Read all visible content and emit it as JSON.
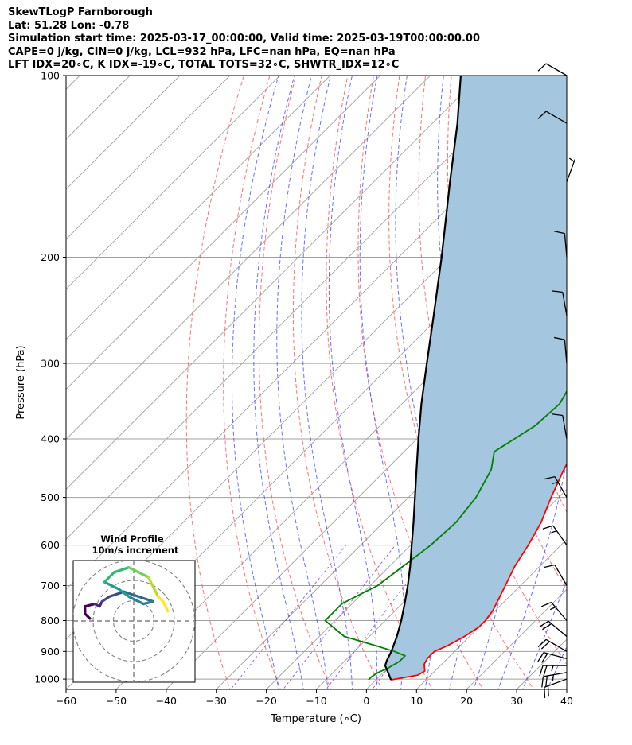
{
  "header": {
    "line1": "SkewTLogP Farnborough",
    "line2": "Lat: 51.28   Lon: -0.78",
    "line3": "Simulation start time: 2025-03-17_00:00:00, Valid time: 2025-03-19T00:00:00.00",
    "line4": "CAPE=0 j/kg, CIN=0 j/kg, LCL=932 hPa, LFC=nan hPa, EQ=nan hPa",
    "line5": "LFT IDX=20∘C, K IDX=-19∘C, TOTAL TOTS=32∘C, SHWTR_IDX=12∘C"
  },
  "inset": {
    "title": "Wind Profile",
    "subtitle": "10m/s increment"
  },
  "colors": {
    "temperature": "#ff0000",
    "dewpoint": "#008000",
    "parcel": "#000000",
    "cape_fill": "#a4c6de",
    "dry_adiabats": "#ff5a5a",
    "moist_adiabats": "#3c50ff",
    "mixing_ratio": "#8a3cd2",
    "isotherms": "#a0a0a0"
  },
  "chart_data": {
    "type": "line",
    "subtype": "skew-t-log-p",
    "xlabel": "Temperature (∘C)",
    "ylabel": "Pressure (hPa)",
    "xlim": [
      -60,
      40
    ],
    "ylim": [
      1040,
      100
    ],
    "x_ticks": [
      -60,
      -50,
      -40,
      -30,
      -20,
      -10,
      0,
      10,
      20,
      30,
      40
    ],
    "x_tick_labels": [
      "−60",
      "−50",
      "−40",
      "−30",
      "−20",
      "−10",
      "0",
      "10",
      "20",
      "30",
      "40"
    ],
    "y_ticks": [
      1000,
      900,
      800,
      700,
      600,
      500,
      400,
      300,
      200,
      100
    ],
    "y_tick_labels": [
      "1000",
      "900",
      "800",
      "700",
      "600",
      "500",
      "400",
      "300",
      "200",
      "100"
    ],
    "grid": true,
    "series": [
      {
        "key": "temperature",
        "points": [
          [
            1003,
            3
          ],
          [
            995,
            5
          ],
          [
            985,
            7.4
          ],
          [
            970,
            8
          ],
          [
            945,
            6.5
          ],
          [
            925,
            6
          ],
          [
            900,
            6
          ],
          [
            880,
            7.5
          ],
          [
            850,
            9
          ],
          [
            820,
            10
          ],
          [
            800,
            10
          ],
          [
            770,
            9.5
          ],
          [
            700,
            7
          ],
          [
            650,
            5
          ],
          [
            600,
            3.5
          ],
          [
            550,
            1.5
          ],
          [
            500,
            -1.5
          ],
          [
            450,
            -4.5
          ],
          [
            400,
            -7.5
          ],
          [
            350,
            -11
          ],
          [
            300,
            -14
          ],
          [
            270,
            -15
          ],
          [
            245,
            -15
          ],
          [
            230,
            -14
          ],
          [
            215,
            -12.5
          ],
          [
            200,
            -11
          ],
          [
            180,
            -8
          ],
          [
            160,
            -5
          ],
          [
            140,
            -2.5
          ],
          [
            120,
            1.5
          ],
          [
            110,
            3.5
          ],
          [
            100,
            7.5
          ]
        ]
      },
      {
        "key": "dewpoint",
        "points": [
          [
            1003,
            -1.5
          ],
          [
            990,
            -1.5
          ],
          [
            975,
            -1
          ],
          [
            960,
            0
          ],
          [
            935,
            1
          ],
          [
            915,
            1
          ],
          [
            900,
            -2
          ],
          [
            880,
            -7
          ],
          [
            850,
            -15
          ],
          [
            800,
            -22
          ],
          [
            750,
            -22
          ],
          [
            720,
            -20
          ],
          [
            700,
            -18.5
          ],
          [
            600,
            -16
          ],
          [
            550,
            -15.5
          ],
          [
            500,
            -16.5
          ],
          [
            450,
            -19
          ],
          [
            420,
            -22
          ],
          [
            380,
            -19
          ],
          [
            350,
            -18.5
          ],
          [
            320,
            -20.5
          ],
          [
            300,
            -24
          ],
          [
            270,
            -29
          ],
          [
            250,
            -27
          ],
          [
            230,
            -26
          ],
          [
            210,
            -24.5
          ],
          [
            190,
            -21.5
          ],
          [
            175,
            -21.5
          ],
          [
            160,
            -22.5
          ],
          [
            140,
            -18
          ],
          [
            120,
            -13
          ],
          [
            100,
            -7
          ]
        ]
      },
      {
        "key": "parcel",
        "points": [
          [
            1003,
            3
          ],
          [
            980,
            1.3
          ],
          [
            950,
            -1
          ],
          [
            932,
            -1.7
          ],
          [
            900,
            -2.6
          ],
          [
            850,
            -4.5
          ],
          [
            800,
            -6.8
          ],
          [
            750,
            -9.5
          ],
          [
            700,
            -12.5
          ],
          [
            650,
            -15.9
          ],
          [
            600,
            -19.8
          ],
          [
            550,
            -24
          ],
          [
            500,
            -28.7
          ],
          [
            450,
            -33.9
          ],
          [
            400,
            -39.7
          ],
          [
            350,
            -46.1
          ],
          [
            300,
            -53.1
          ],
          [
            250,
            -61.3
          ],
          [
            200,
            -71.4
          ],
          [
            150,
            -84.8
          ],
          [
            120,
            -95
          ],
          [
            100,
            -103.9
          ]
        ]
      }
    ],
    "wind_barbs": [
      {
        "p": 1000,
        "dir": 250,
        "speed_kt": 20
      },
      {
        "p": 975,
        "dir": 260,
        "speed_kt": 25
      },
      {
        "p": 950,
        "dir": 270,
        "speed_kt": 25
      },
      {
        "p": 925,
        "dir": 285,
        "speed_kt": 20
      },
      {
        "p": 900,
        "dir": 300,
        "speed_kt": 20
      },
      {
        "p": 850,
        "dir": 310,
        "speed_kt": 20
      },
      {
        "p": 800,
        "dir": 320,
        "speed_kt": 15
      },
      {
        "p": 700,
        "dir": 330,
        "speed_kt": 10
      },
      {
        "p": 600,
        "dir": 325,
        "speed_kt": 15
      },
      {
        "p": 500,
        "dir": 330,
        "speed_kt": 15
      },
      {
        "p": 400,
        "dir": 350,
        "speed_kt": 10
      },
      {
        "p": 300,
        "dir": 355,
        "speed_kt": 10
      },
      {
        "p": 250,
        "dir": 350,
        "speed_kt": 10
      },
      {
        "p": 200,
        "dir": 355,
        "speed_kt": 10
      },
      {
        "p": 150,
        "dir": 20,
        "speed_kt": 5
      },
      {
        "p": 120,
        "dir": 300,
        "speed_kt": 10
      },
      {
        "p": 100,
        "dir": 300,
        "speed_kt": 10
      }
    ],
    "hodograph": {
      "rings": 3,
      "points": [
        [
          -9,
          0.5
        ],
        [
          -10,
          1.5
        ],
        [
          -10,
          3
        ],
        [
          -8,
          3.5
        ],
        [
          -7,
          3
        ],
        [
          -6.5,
          4
        ],
        [
          -5,
          5
        ],
        [
          -2,
          6
        ],
        [
          1,
          5
        ],
        [
          4,
          4
        ],
        [
          2,
          3.5
        ],
        [
          -1,
          5
        ],
        [
          -3,
          6.5
        ],
        [
          -6,
          8
        ],
        [
          -4,
          10
        ],
        [
          -1,
          11
        ],
        [
          1,
          10
        ],
        [
          3,
          9
        ],
        [
          4,
          7
        ],
        [
          5,
          5
        ],
        [
          6,
          4
        ],
        [
          7,
          2
        ]
      ]
    }
  }
}
